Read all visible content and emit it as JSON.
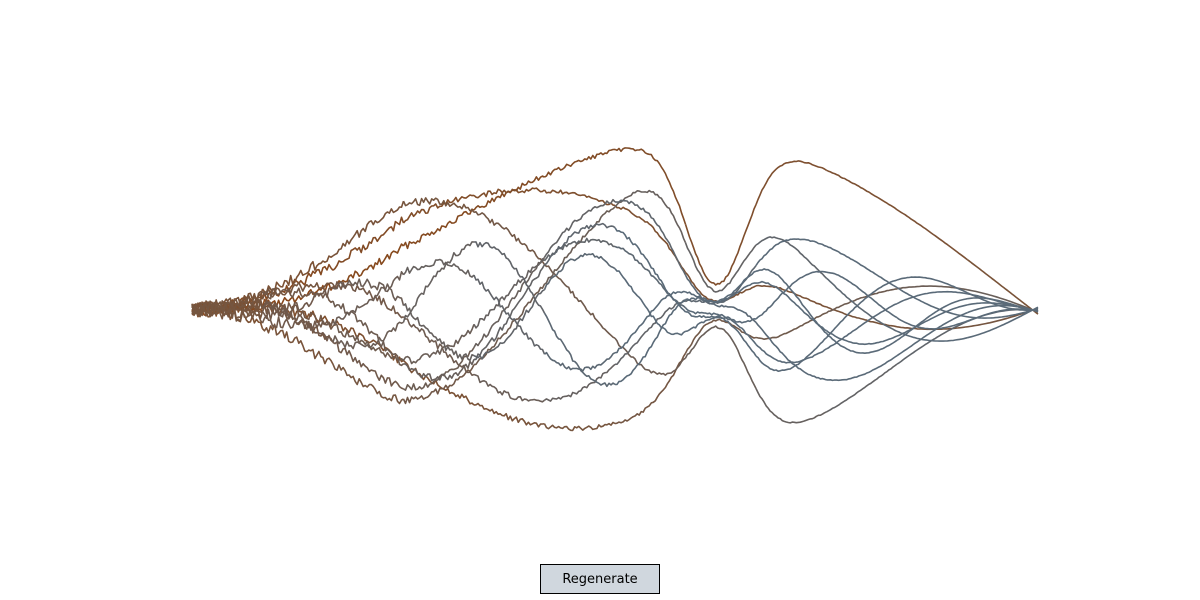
{
  "button": {
    "label": "Regenerate"
  },
  "colors": {
    "start": "#8b4513",
    "end": "#5a6a78",
    "background": "#ffffff",
    "button_bg": "#d0d7de"
  },
  "strands": {
    "count": 12
  }
}
